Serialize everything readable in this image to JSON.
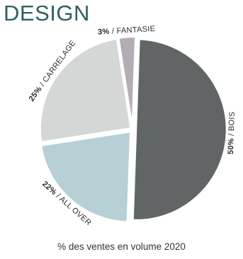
{
  "header": {
    "title": "DESIGN"
  },
  "chart_data": {
    "type": "pie",
    "title": "DESIGN",
    "caption": "% des ventes en volume 2020",
    "start_angle_deg": 2,
    "slices": [
      {
        "pct_label": "50%",
        "name": "BOIS",
        "value": 50,
        "color": "#626565",
        "offset": 5
      },
      {
        "pct_label": "22%",
        "name": "ALL OVER",
        "value": 22,
        "color": "#b7d0d5",
        "offset": 4
      },
      {
        "pct_label": "25%",
        "name": "CARRELAGE",
        "value": 25,
        "color": "#d5d6d6",
        "offset": 3
      },
      {
        "pct_label": "3%",
        "name": "FANTASIE",
        "value": 3,
        "color": "#b4adb6",
        "offset": 3
      }
    ]
  }
}
